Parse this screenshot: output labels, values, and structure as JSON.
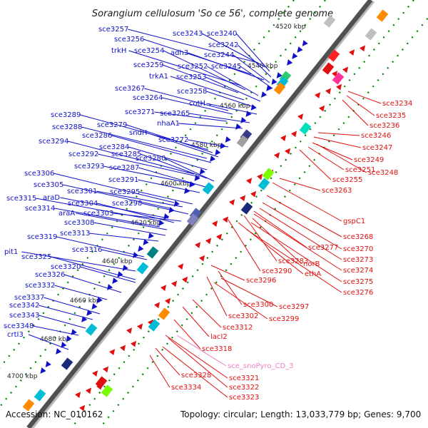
{
  "title": "Sorangium cellulosum 'So ce 56', complete genome",
  "footer": {
    "accession": "Accession: NC_010162",
    "summary": "Topology: circular; Length: 13,033,779 bp; Genes: 9,700"
  },
  "colors": {
    "forward": "#1010c8",
    "reverse": "#e01010",
    "rna": "#f080c0",
    "backbone": "#808080",
    "kbp_dots": "#008000"
  },
  "kbp_marks": [
    "4520 kbp",
    "4540 kbp",
    "4560 kbp",
    "4580 kbp",
    "4600 kbp",
    "4620 kbp",
    "4640 kbp",
    "4660 kbp",
    "4680 kbp",
    "4700 kbp"
  ],
  "forward_labels": [
    "sce3257",
    "sce3243",
    "sce3240",
    "sce3256",
    "sce3242",
    "trkH",
    "sce3254",
    "adh3",
    "sce3244",
    "sce3259",
    "sce3252",
    "sce3245",
    "trkA1",
    "sce3253",
    "sce3267",
    "sce3258",
    "sce3264",
    "cotH",
    "sce3271",
    "sce3265",
    "nhaA1",
    "sce3289",
    "sce3279",
    "sndH",
    "sce3288",
    "sce3286",
    "sce3272",
    "sce3294",
    "sce3284",
    "sce3292",
    "sce3285",
    "sce3280",
    "sce3293",
    "sce3287",
    "sce3306",
    "sce3291",
    "sce3305",
    "sce3301",
    "sce3295",
    "sce3315",
    "araD",
    "sce3298",
    "sce3304",
    "sce3314",
    "araA",
    "sce3303",
    "sce3308",
    "sce3313",
    "sce3319",
    "sce3316",
    "pit1",
    "sce3325",
    "sce3320",
    "sce3326",
    "sce3332",
    "sce3337",
    "sce3342",
    "sce3343",
    "sce3348",
    "crtI3"
  ],
  "reverse_labels": [
    "sce3234",
    "sce3235",
    "sce3236",
    "sce3246",
    "sce3247",
    "sce3249",
    "sce3251",
    "sce3248",
    "sce3255",
    "sce3263",
    "gspC1",
    "sce3268",
    "sce3270",
    "sce3277",
    "sce3273",
    "sce3283",
    "norB",
    "sce3274",
    "sce3290",
    "ethA",
    "sce3275",
    "sce3296",
    "sce3276",
    "sce3300",
    "sce3297",
    "sce3302",
    "sce3299",
    "sce3312",
    "lacI2",
    "sce3318",
    "sce3321",
    "sce3328",
    "sce3322",
    "sce3334",
    "sce3323"
  ],
  "rna_labels": [
    "sce_snoPyro_CD_3"
  ]
}
